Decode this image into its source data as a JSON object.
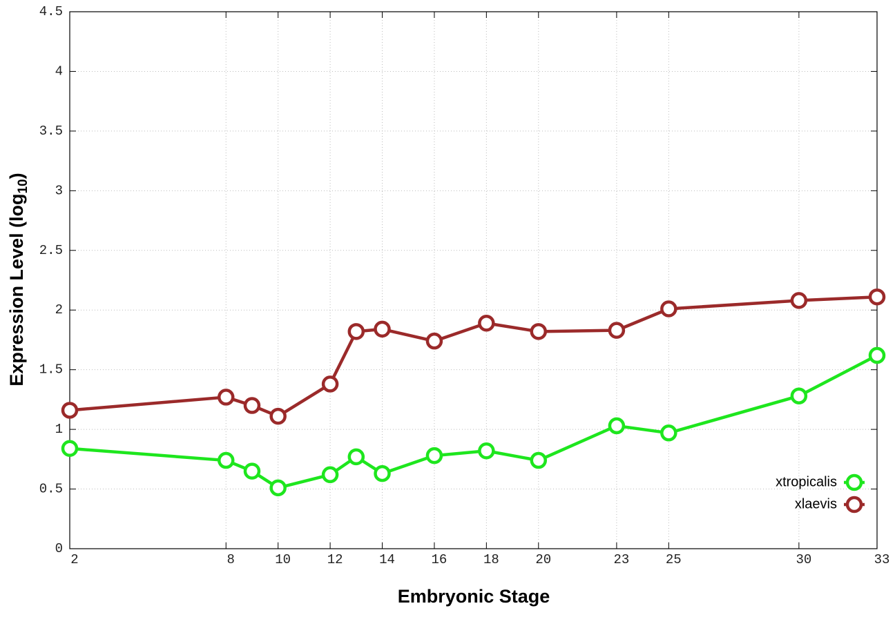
{
  "chart_data": {
    "type": "line",
    "xlabel": "Embryonic Stage",
    "ylabel": [
      "Expression Level (log",
      "10",
      ")"
    ],
    "x": [
      2,
      8,
      9,
      10,
      12,
      13,
      14,
      16,
      18,
      20,
      23,
      25,
      30,
      33
    ],
    "series": [
      {
        "name": "xtropicalis",
        "color": "#1ee61e",
        "values": [
          0.84,
          0.74,
          0.65,
          0.51,
          0.62,
          0.77,
          0.63,
          0.78,
          0.82,
          0.74,
          1.03,
          0.97,
          1.28,
          1.62
        ]
      },
      {
        "name": "xlaevis",
        "color": "#9b2a2a",
        "values": [
          1.16,
          1.27,
          1.2,
          1.11,
          1.38,
          1.82,
          1.84,
          1.74,
          1.89,
          1.82,
          1.83,
          2.01,
          2.08,
          2.11
        ]
      }
    ],
    "xlim": [
      2,
      33
    ],
    "xticks": [
      2,
      8,
      10,
      12,
      14,
      16,
      18,
      20,
      23,
      25,
      30,
      33
    ],
    "ylim": [
      0,
      4.5
    ],
    "yticks": [
      0,
      0.5,
      1,
      1.5,
      2,
      2.5,
      3,
      3.5,
      4,
      4.5
    ],
    "grid": true,
    "legend": "lower right"
  }
}
